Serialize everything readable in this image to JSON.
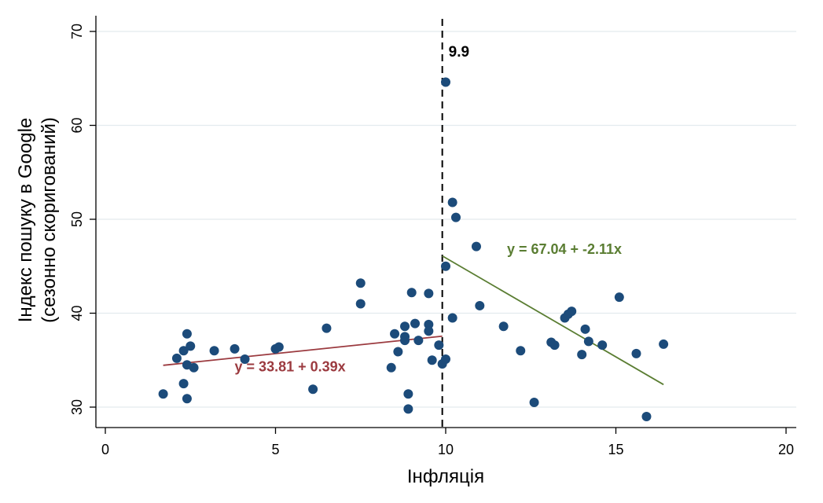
{
  "chart_data": {
    "type": "scatter",
    "xlabel": "Інфляція",
    "ylabel_lines": [
      "Індекс пошуку в Google",
      "(сезонно скоригований)"
    ],
    "xlim": [
      0,
      20
    ],
    "ylim": [
      28,
      71
    ],
    "xticks": [
      0,
      5,
      10,
      15,
      20
    ],
    "yticks": [
      30,
      40,
      50,
      60,
      70
    ],
    "grid": true,
    "cutoff": {
      "x": 9.9,
      "label": "9.9"
    },
    "points": [
      {
        "x": 1.7,
        "y": 31.4
      },
      {
        "x": 2.1,
        "y": 35.2
      },
      {
        "x": 2.3,
        "y": 36.0
      },
      {
        "x": 2.3,
        "y": 32.5
      },
      {
        "x": 2.4,
        "y": 37.8
      },
      {
        "x": 2.4,
        "y": 34.5
      },
      {
        "x": 2.4,
        "y": 30.9
      },
      {
        "x": 2.5,
        "y": 36.5
      },
      {
        "x": 2.6,
        "y": 34.2
      },
      {
        "x": 3.2,
        "y": 36.0
      },
      {
        "x": 3.8,
        "y": 36.2
      },
      {
        "x": 4.1,
        "y": 35.1
      },
      {
        "x": 5.0,
        "y": 36.2
      },
      {
        "x": 5.1,
        "y": 36.4
      },
      {
        "x": 6.1,
        "y": 31.9
      },
      {
        "x": 6.5,
        "y": 38.4
      },
      {
        "x": 7.5,
        "y": 43.2
      },
      {
        "x": 7.5,
        "y": 41.0
      },
      {
        "x": 8.4,
        "y": 34.2
      },
      {
        "x": 8.5,
        "y": 37.8
      },
      {
        "x": 8.6,
        "y": 35.9
      },
      {
        "x": 8.8,
        "y": 38.6
      },
      {
        "x": 8.8,
        "y": 37.5
      },
      {
        "x": 8.8,
        "y": 37.1
      },
      {
        "x": 8.9,
        "y": 31.4
      },
      {
        "x": 8.9,
        "y": 29.8
      },
      {
        "x": 9.0,
        "y": 42.2
      },
      {
        "x": 9.1,
        "y": 38.9
      },
      {
        "x": 9.2,
        "y": 37.1
      },
      {
        "x": 9.5,
        "y": 42.1
      },
      {
        "x": 9.5,
        "y": 38.8
      },
      {
        "x": 9.5,
        "y": 38.1
      },
      {
        "x": 9.6,
        "y": 35.0
      },
      {
        "x": 9.8,
        "y": 36.6
      },
      {
        "x": 9.9,
        "y": 34.6
      },
      {
        "x": 10.0,
        "y": 35.1
      },
      {
        "x": 10.0,
        "y": 64.6
      },
      {
        "x": 10.0,
        "y": 45.0
      },
      {
        "x": 10.2,
        "y": 51.8
      },
      {
        "x": 10.2,
        "y": 39.5
      },
      {
        "x": 10.3,
        "y": 50.2
      },
      {
        "x": 10.9,
        "y": 47.1
      },
      {
        "x": 11.0,
        "y": 40.8
      },
      {
        "x": 11.7,
        "y": 38.6
      },
      {
        "x": 12.2,
        "y": 36.0
      },
      {
        "x": 12.6,
        "y": 30.5
      },
      {
        "x": 13.1,
        "y": 36.9
      },
      {
        "x": 13.2,
        "y": 36.6
      },
      {
        "x": 13.5,
        "y": 39.5
      },
      {
        "x": 13.6,
        "y": 39.9
      },
      {
        "x": 13.7,
        "y": 40.2
      },
      {
        "x": 14.0,
        "y": 35.6
      },
      {
        "x": 14.1,
        "y": 38.3
      },
      {
        "x": 14.2,
        "y": 37.0
      },
      {
        "x": 14.6,
        "y": 36.6
      },
      {
        "x": 15.1,
        "y": 41.7
      },
      {
        "x": 15.6,
        "y": 35.7
      },
      {
        "x": 15.9,
        "y": 29.0
      },
      {
        "x": 16.4,
        "y": 36.7
      }
    ],
    "fits": [
      {
        "label": "y = 33.81 + 0.39x",
        "intercept": 33.81,
        "slope": 0.39,
        "x_range": [
          1.7,
          9.9
        ],
        "color": "#9b3a3f",
        "label_at": {
          "x": 3.8,
          "y": 33.8
        }
      },
      {
        "label": "y = 67.04 + -2.11x",
        "intercept": 67.04,
        "slope": -2.11,
        "x_range": [
          9.9,
          16.4
        ],
        "color": "#5a7d32",
        "label_at": {
          "x": 11.8,
          "y": 46.3
        }
      }
    ],
    "point_color": "#1c4b7a"
  }
}
